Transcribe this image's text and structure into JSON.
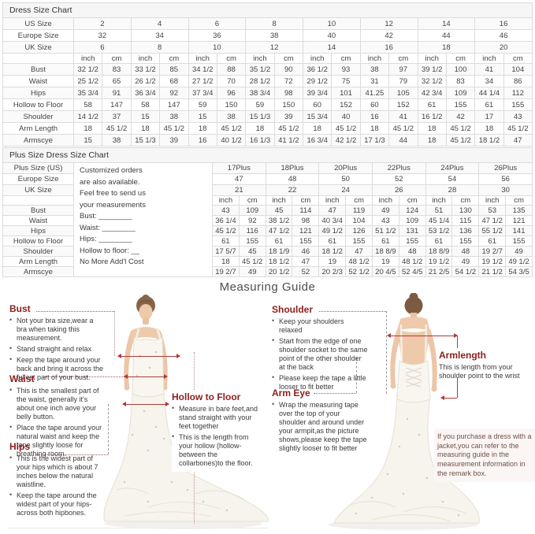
{
  "colors": {
    "heading_red": "#8e2020",
    "measure_line_red": "#b03a3a",
    "table_border": "#dcdcdc",
    "title_bar_bg": "#f6f6f6"
  },
  "size_chart": {
    "title": "Dress Size Chart",
    "unit_labels": [
      "inch",
      "cm"
    ],
    "header_rows": [
      {
        "label": "US Size",
        "values": [
          "2",
          "4",
          "6",
          "8",
          "10",
          "12",
          "14",
          "16"
        ]
      },
      {
        "label": "Europe Size",
        "values": [
          "32",
          "34",
          "36",
          "38",
          "40",
          "42",
          "44",
          "46"
        ]
      },
      {
        "label": "UK Size",
        "values": [
          "6",
          "8",
          "10",
          "12",
          "14",
          "16",
          "18",
          "20"
        ]
      }
    ],
    "rows": [
      {
        "label": "Bust",
        "values": [
          [
            "32 1/2",
            "83"
          ],
          [
            "33 1/2",
            "85"
          ],
          [
            "34 1/2",
            "88"
          ],
          [
            "35 1/2",
            "90"
          ],
          [
            "36 1/2",
            "93"
          ],
          [
            "38",
            "97"
          ],
          [
            "39 1/2",
            "100"
          ],
          [
            "41",
            "104"
          ]
        ]
      },
      {
        "label": "Waist",
        "values": [
          [
            "25 1/2",
            "65"
          ],
          [
            "26 1/2",
            "68"
          ],
          [
            "27 1/2",
            "70"
          ],
          [
            "28 1/2",
            "72"
          ],
          [
            "29 1/2",
            "75"
          ],
          [
            "31",
            "79"
          ],
          [
            "32 1/2",
            "83"
          ],
          [
            "34",
            "86"
          ]
        ]
      },
      {
        "label": "Hips",
        "values": [
          [
            "35 3/4",
            "91"
          ],
          [
            "36 3/4",
            "92"
          ],
          [
            "37 3/4",
            "96"
          ],
          [
            "38 3/4",
            "98"
          ],
          [
            "39 3/4",
            "101"
          ],
          [
            "41.25",
            "105"
          ],
          [
            "42 3/4",
            "109"
          ],
          [
            "44 1/4",
            "112"
          ]
        ]
      },
      {
        "label": "Hollow to Floor",
        "values": [
          [
            "58",
            "147"
          ],
          [
            "58",
            "147"
          ],
          [
            "59",
            "150"
          ],
          [
            "59",
            "150"
          ],
          [
            "60",
            "152"
          ],
          [
            "60",
            "152"
          ],
          [
            "61",
            "155"
          ],
          [
            "61",
            "155"
          ]
        ]
      },
      {
        "label": "Shoulder",
        "values": [
          [
            "14 1/2",
            "37"
          ],
          [
            "15",
            "38"
          ],
          [
            "15",
            "38"
          ],
          [
            "15 1/3",
            "39"
          ],
          [
            "15 3/4",
            "40"
          ],
          [
            "16",
            "41"
          ],
          [
            "16 1/2",
            "42"
          ],
          [
            "17",
            "43"
          ]
        ]
      },
      {
        "label": "Arm Length",
        "values": [
          [
            "18",
            "45 1/2"
          ],
          [
            "18",
            "45 1/2"
          ],
          [
            "18",
            "45 1/2"
          ],
          [
            "18",
            "45 1/2"
          ],
          [
            "18",
            "45 1/2"
          ],
          [
            "18",
            "45 1/2"
          ],
          [
            "18",
            "45 1/2"
          ],
          [
            "18",
            "45 1/2"
          ]
        ]
      },
      {
        "label": "Armscye",
        "values": [
          [
            "15",
            "38"
          ],
          [
            "15 1/3",
            "39"
          ],
          [
            "16",
            "40 1/2"
          ],
          [
            "16 1/3",
            "41 1/2"
          ],
          [
            "16 3/4",
            "42 1/2"
          ],
          [
            "17 1/3",
            "44"
          ],
          [
            "18",
            "45 1/2"
          ],
          [
            "18 1/2",
            "47"
          ]
        ]
      }
    ]
  },
  "plus_chart": {
    "title": "Plus Size Dress Size Chart",
    "unit_labels": [
      "inch",
      "cm"
    ],
    "customized_note": {
      "lines": [
        "Customized orders",
        "are also available.",
        "Feel free to send us",
        "your measurements",
        "Bust: ________",
        "Waist: ________",
        "Hips: ________",
        "Hollow to floor: __",
        "No More Add'l Cost"
      ]
    },
    "header_rows": [
      {
        "label": "Plus Size (US)",
        "values": [
          "17Plus",
          "18Plus",
          "20Plus",
          "22Plus",
          "24Plus",
          "26Plus"
        ]
      },
      {
        "label": "Europe Size",
        "values": [
          "47",
          "48",
          "50",
          "52",
          "54",
          "56"
        ]
      },
      {
        "label": "UK Size",
        "values": [
          "21",
          "22",
          "24",
          "26",
          "28",
          "30"
        ]
      }
    ],
    "rows": [
      {
        "label": "Bust",
        "values": [
          [
            "43",
            "109"
          ],
          [
            "45",
            "114"
          ],
          [
            "47",
            "119"
          ],
          [
            "49",
            "124"
          ],
          [
            "51",
            "130"
          ],
          [
            "53",
            "135"
          ]
        ]
      },
      {
        "label": "Waist",
        "values": [
          [
            "36 1/4",
            "92"
          ],
          [
            "38 1/2",
            "98"
          ],
          [
            "40 3/4",
            "104"
          ],
          [
            "43",
            "109"
          ],
          [
            "45 1/4",
            "115"
          ],
          [
            "47 1/2",
            "121"
          ]
        ]
      },
      {
        "label": "Hips",
        "values": [
          [
            "45 1/2",
            "116"
          ],
          [
            "47 1/2",
            "121"
          ],
          [
            "49 1/2",
            "126"
          ],
          [
            "51 1/2",
            "131"
          ],
          [
            "53 1/2",
            "136"
          ],
          [
            "55 1/2",
            "141"
          ]
        ]
      },
      {
        "label": "Hollow to Floor",
        "values": [
          [
            "61",
            "155"
          ],
          [
            "61",
            "155"
          ],
          [
            "61",
            "155"
          ],
          [
            "61",
            "155"
          ],
          [
            "61",
            "155"
          ],
          [
            "61",
            "155"
          ]
        ]
      },
      {
        "label": "Shoulder",
        "values": [
          [
            "17 5/7",
            "45"
          ],
          [
            "18 1/9",
            "46"
          ],
          [
            "18 1/2",
            "47"
          ],
          [
            "18 8/9",
            "48"
          ],
          [
            "18 8/9",
            "48"
          ],
          [
            "19 2/7",
            "49"
          ]
        ]
      },
      {
        "label": "Arm Length",
        "values": [
          [
            "18",
            "45 1/2"
          ],
          [
            "18 1/2",
            "47"
          ],
          [
            "19",
            "48 1/2"
          ],
          [
            "19",
            "48 1/2"
          ],
          [
            "19 1/2",
            "49"
          ],
          [
            "19 1/2",
            "49 1/2"
          ]
        ]
      },
      {
        "label": "Armscye",
        "values": [
          [
            "19 2/7",
            "49"
          ],
          [
            "20 1/2",
            "52"
          ],
          [
            "20 2/3",
            "52 1/2"
          ],
          [
            "20 4/5",
            "52 4/5"
          ],
          [
            "21 2/5",
            "54 1/2"
          ],
          [
            "21 1/2",
            "54 3/5"
          ]
        ]
      }
    ]
  },
  "guide": {
    "title": "Measuring Guide",
    "bust": {
      "heading": "Bust",
      "bullets": [
        "Not your bra size,wear a bra when taking this measurement.",
        "Stand straight and relax",
        "Keep the tape around your back and bring it across the fullest part of your bust."
      ]
    },
    "waist": {
      "heading": "Waist",
      "bullets": [
        "This is the smallest part of the waist, generally it's about one inch aove your belly button.",
        "Place the tape around your natural waist and keep the tape slightly loose for breathing room."
      ]
    },
    "hips": {
      "heading": "Hips",
      "bullets": [
        "This is the widest part of your hips which is about 7 inches below the natural waistline.",
        "Keep the tape around the widest part of your hips-across both hipbones."
      ]
    },
    "hollow": {
      "heading": "Hollow to Floor",
      "bullets": [
        "Measure in bare feet,and stand straight with your feet together",
        "This is the length from your hollow (hollow-between the collarbones)to the floor."
      ]
    },
    "shoulder": {
      "heading": "Shoulder",
      "bullets": [
        "Keep your shoulders relaxed",
        "Start from the edge of one shoulder socket to the same point of the other shoulder at the back",
        "Please keep the tape a little looser to fit better"
      ]
    },
    "arm_eye": {
      "heading": "Arm Eye",
      "bullets": [
        "Wrap the measuring tape over the top of your shoulder and around under your armpit,as the picture shows,please keep the tape slightly looser to fit better"
      ]
    },
    "armlength": {
      "heading": "Armlength",
      "text": "This is length from your shoulder point to the wrist"
    },
    "note": "If you purchase a dress with a jacket,you can refer to the measuring guide in the measurement information in the remark box."
  }
}
